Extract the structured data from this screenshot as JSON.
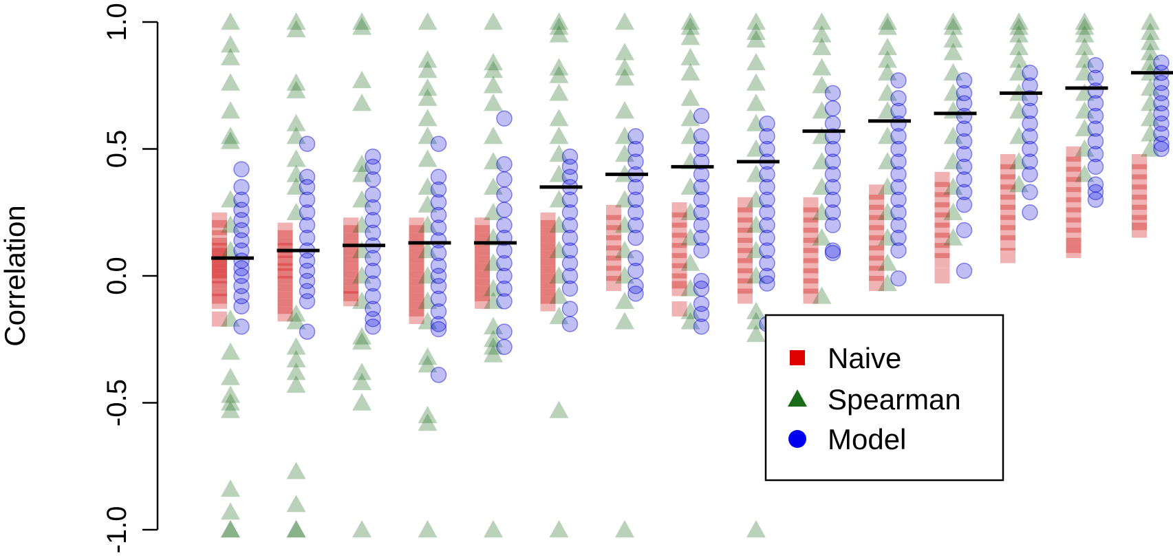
{
  "chart_data": {
    "type": "scatter",
    "ylabel": "Correlation",
    "ylim": [
      -1.0,
      1.0
    ],
    "yticks": [
      "-1.0",
      "-0.5",
      "0.0",
      "0.5",
      "1.0"
    ],
    "ytick_values": [
      -1.0,
      -0.5,
      0.0,
      0.5,
      1.0
    ],
    "grid": false,
    "legend": {
      "placement": "bottom-right",
      "entries": [
        {
          "label": "Naive",
          "marker": "square",
          "color": "#e00000"
        },
        {
          "label": "Spearman",
          "marker": "triangle",
          "color": "#1a6b1a"
        },
        {
          "label": "Model",
          "marker": "circle",
          "color": "#0000ee"
        }
      ]
    },
    "series_colors": {
      "naive": "#cc0000",
      "spearman": "#1a6b1a",
      "model": "#0000dd",
      "mean": "#000000"
    },
    "groups": [
      {
        "mean": 0.07,
        "naive": [
          0.22,
          0.19,
          0.15,
          0.12,
          0.1,
          0.08,
          0.06,
          0.04,
          0.02,
          0.0,
          -0.02,
          -0.05,
          -0.08,
          -0.1,
          -0.17
        ],
        "spearman": [
          1.0,
          0.91,
          0.86,
          0.76,
          0.65,
          0.55,
          0.53,
          0.3,
          0.2,
          0.1,
          -0.17,
          -0.3,
          -0.4,
          -0.47,
          -0.5,
          -0.53,
          -0.84,
          -0.93,
          -1.0,
          -1.0
        ],
        "model": [
          0.42,
          0.35,
          0.3,
          0.26,
          0.22,
          0.18,
          0.14,
          0.1,
          0.06,
          0.03,
          0.0,
          -0.04,
          -0.08,
          -0.12,
          -0.2
        ]
      },
      {
        "mean": 0.1,
        "naive": [
          0.18,
          0.15,
          0.12,
          0.1,
          0.07,
          0.05,
          0.02,
          0.0,
          -0.03,
          -0.06,
          -0.09,
          -0.12,
          -0.15
        ],
        "spearman": [
          1.0,
          0.97,
          0.76,
          0.73,
          0.6,
          0.55,
          0.46,
          0.4,
          0.35,
          0.25,
          -0.15,
          -0.18,
          -0.28,
          -0.33,
          -0.38,
          -0.43,
          -0.77,
          -0.9,
          -1.0,
          -1.0
        ],
        "model": [
          0.52,
          0.39,
          0.35,
          0.3,
          0.25,
          0.2,
          0.15,
          0.1,
          0.06,
          0.02,
          -0.02,
          -0.06,
          -0.1,
          -0.22
        ]
      },
      {
        "mean": 0.12,
        "naive": [
          0.2,
          0.17,
          0.14,
          0.11,
          0.08,
          0.05,
          0.02,
          -0.01,
          -0.04,
          -0.07,
          -0.09
        ],
        "spearman": [
          1.0,
          0.98,
          0.77,
          0.68,
          0.44,
          0.4,
          0.3,
          0.2,
          0.1,
          0.0,
          -0.1,
          -0.24,
          -0.26,
          -0.38,
          -0.42,
          -0.5,
          -1.0
        ],
        "model": [
          0.47,
          0.43,
          0.38,
          0.32,
          0.27,
          0.22,
          0.17,
          0.12,
          0.07,
          0.02,
          -0.03,
          -0.08,
          -0.13,
          -0.17,
          -0.2
        ]
      },
      {
        "mean": 0.13,
        "naive": [
          0.2,
          0.17,
          0.14,
          0.11,
          0.08,
          0.05,
          0.02,
          -0.01,
          -0.04,
          -0.07,
          -0.1,
          -0.13,
          -0.16
        ],
        "spearman": [
          1.0,
          0.85,
          0.81,
          0.74,
          0.7,
          0.62,
          0.55,
          0.46,
          0.35,
          0.28,
          0.2,
          0.1,
          0.0,
          -0.1,
          -0.18,
          -0.32,
          -0.35,
          -0.55,
          -0.58,
          -1.0
        ],
        "model": [
          0.52,
          0.39,
          0.34,
          0.29,
          0.24,
          0.19,
          0.14,
          0.09,
          0.04,
          0.0,
          -0.04,
          -0.09,
          -0.14,
          -0.19,
          -0.21,
          -0.39
        ]
      },
      {
        "mean": 0.13,
        "naive": [
          0.2,
          0.17,
          0.14,
          0.11,
          0.08,
          0.05,
          0.02,
          -0.01,
          -0.04,
          -0.07,
          -0.1
        ],
        "spearman": [
          1.0,
          0.84,
          0.81,
          0.75,
          0.68,
          0.55,
          0.45,
          0.35,
          0.25,
          0.15,
          0.05,
          -0.05,
          -0.1,
          -0.2,
          -0.25,
          -0.28,
          -0.31,
          -1.0
        ],
        "model": [
          0.62,
          0.44,
          0.38,
          0.32,
          0.26,
          0.2,
          0.15,
          0.1,
          0.05,
          0.0,
          -0.05,
          -0.1,
          -0.22,
          -0.28
        ]
      },
      {
        "mean": 0.35,
        "naive": [
          0.22,
          0.19,
          0.16,
          0.13,
          0.1,
          0.07,
          0.04,
          0.01,
          -0.02,
          -0.05,
          -0.08,
          -0.11
        ],
        "spearman": [
          1.0,
          0.98,
          0.95,
          0.82,
          0.79,
          0.72,
          0.62,
          0.55,
          0.48,
          0.4,
          0.3,
          0.2,
          0.1,
          0.0,
          -0.08,
          -0.16,
          -0.53,
          -1.0
        ],
        "model": [
          0.47,
          0.43,
          0.39,
          0.35,
          0.3,
          0.25,
          0.2,
          0.15,
          0.1,
          0.05,
          0.0,
          -0.05,
          -0.13,
          -0.19
        ]
      },
      {
        "mean": 0.4,
        "naive": [
          0.25,
          0.21,
          0.17,
          0.13,
          0.09,
          0.05,
          0.01,
          -0.03
        ],
        "spearman": [
          1.0,
          0.88,
          0.82,
          0.78,
          0.65,
          0.55,
          0.48,
          0.4,
          0.3,
          0.2,
          0.1,
          0.0,
          -0.1,
          -0.18,
          -1.0
        ],
        "model": [
          0.55,
          0.5,
          0.45,
          0.4,
          0.35,
          0.3,
          0.25,
          0.2,
          0.15,
          0.07,
          0.02,
          -0.04,
          -0.07
        ]
      },
      {
        "mean": 0.43,
        "naive": [
          0.26,
          0.22,
          0.18,
          0.14,
          0.1,
          0.06,
          0.02,
          -0.02,
          -0.05,
          -0.13
        ],
        "spearman": [
          1.0,
          0.98,
          0.94,
          0.86,
          0.8,
          0.7,
          0.62,
          0.55,
          0.45,
          0.35,
          0.25,
          0.15,
          0.05,
          -0.05,
          -0.14,
          -0.18
        ],
        "model": [
          0.63,
          0.55,
          0.5,
          0.45,
          0.4,
          0.35,
          0.3,
          0.25,
          0.2,
          0.15,
          0.1,
          -0.02,
          -0.05,
          -0.11,
          -0.15,
          -0.2
        ]
      },
      {
        "mean": 0.45,
        "naive": [
          0.28,
          0.24,
          0.2,
          0.16,
          0.12,
          0.08,
          0.04,
          0.0,
          -0.04,
          -0.08
        ],
        "spearman": [
          1.0,
          0.96,
          0.93,
          0.84,
          0.76,
          0.68,
          0.6,
          0.5,
          0.4,
          0.3,
          0.2,
          0.1,
          0.0,
          -0.14,
          -0.18,
          -0.23,
          -1.0
        ],
        "model": [
          0.6,
          0.55,
          0.5,
          0.45,
          0.4,
          0.35,
          0.3,
          0.25,
          0.2,
          0.15,
          0.1,
          0.05,
          0.0,
          -0.03,
          -0.19
        ]
      },
      {
        "mean": 0.57,
        "naive": [
          0.28,
          0.24,
          0.2,
          0.16,
          0.12,
          0.08,
          0.04,
          0.0,
          -0.04,
          -0.08
        ],
        "spearman": [
          1.0,
          0.95,
          0.9,
          0.82,
          0.75,
          0.65,
          0.55,
          0.45,
          0.35,
          0.25,
          0.15,
          -0.08
        ],
        "model": [
          0.72,
          0.66,
          0.6,
          0.55,
          0.5,
          0.45,
          0.4,
          0.35,
          0.3,
          0.25,
          0.2,
          0.1,
          0.09
        ]
      },
      {
        "mean": 0.61,
        "naive": [
          0.33,
          0.29,
          0.25,
          0.21,
          0.17,
          0.13,
          0.09,
          0.05,
          0.01,
          -0.03
        ],
        "spearman": [
          1.0,
          0.98,
          0.9,
          0.85,
          0.8,
          0.72,
          0.65,
          0.55,
          0.45,
          0.35,
          0.25,
          0.15,
          0.05,
          -0.03
        ],
        "model": [
          0.77,
          0.7,
          0.65,
          0.6,
          0.55,
          0.5,
          0.45,
          0.4,
          0.35,
          0.3,
          0.25,
          0.2,
          0.15,
          0.1,
          -0.01
        ]
      },
      {
        "mean": 0.64,
        "naive": [
          0.38,
          0.34,
          0.3,
          0.26,
          0.22,
          0.18,
          0.14,
          0.1,
          0.06,
          0.0
        ],
        "spearman": [
          1.0,
          0.98,
          0.93,
          0.88,
          0.8,
          0.72,
          0.65,
          0.55,
          0.45,
          0.35,
          0.25,
          0.15
        ],
        "model": [
          0.77,
          0.72,
          0.68,
          0.63,
          0.58,
          0.53,
          0.48,
          0.43,
          0.38,
          0.33,
          0.28,
          0.18,
          0.02
        ]
      },
      {
        "mean": 0.72,
        "naive": [
          0.45,
          0.41,
          0.37,
          0.33,
          0.29,
          0.25,
          0.21,
          0.17,
          0.13,
          0.08
        ],
        "spearman": [
          1.0,
          0.98,
          0.95,
          0.9,
          0.85,
          0.8,
          0.72,
          0.65,
          0.55,
          0.45,
          0.36
        ],
        "model": [
          0.8,
          0.75,
          0.7,
          0.65,
          0.6,
          0.55,
          0.5,
          0.45,
          0.4,
          0.33,
          0.25
        ]
      },
      {
        "mean": 0.74,
        "naive": [
          0.48,
          0.44,
          0.4,
          0.36,
          0.32,
          0.28,
          0.24,
          0.2,
          0.16,
          0.12,
          0.1
        ],
        "spearman": [
          1.0,
          0.98,
          0.95,
          0.9,
          0.85,
          0.8,
          0.72,
          0.65,
          0.58,
          0.5,
          0.4
        ],
        "model": [
          0.83,
          0.78,
          0.73,
          0.68,
          0.63,
          0.58,
          0.53,
          0.48,
          0.43,
          0.36,
          0.33,
          0.3
        ]
      },
      {
        "mean": 0.8,
        "naive": [
          0.45,
          0.41,
          0.37,
          0.33,
          0.29,
          0.25,
          0.21,
          0.18
        ],
        "spearman": [
          1.0,
          0.96,
          0.92,
          0.88,
          0.84,
          0.8,
          0.74,
          0.68,
          0.62,
          0.56,
          0.5
        ],
        "model": [
          0.84,
          0.8,
          0.76,
          0.72,
          0.68,
          0.64,
          0.6,
          0.56,
          0.52,
          0.5
        ]
      }
    ]
  }
}
